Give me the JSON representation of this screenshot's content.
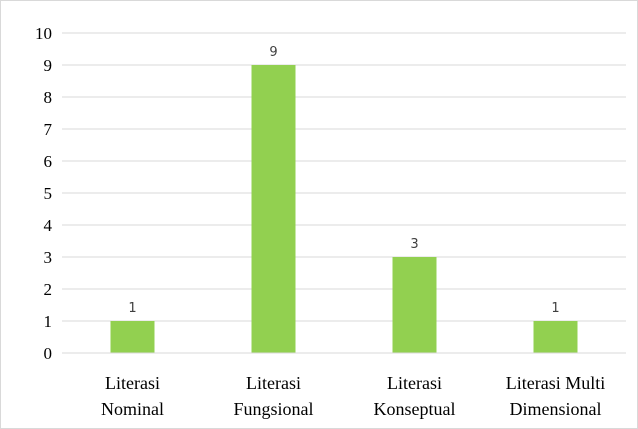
{
  "chart_data": {
    "type": "bar",
    "categories": [
      [
        "Literasi",
        "Nominal"
      ],
      [
        "Literasi",
        "Fungsional"
      ],
      [
        "Literasi",
        "Konseptual"
      ],
      [
        "Literasi Multi",
        "Dimensional"
      ]
    ],
    "values": [
      1,
      9,
      3,
      1
    ],
    "data_labels": [
      "1",
      "9",
      "3",
      "1"
    ],
    "ylim": [
      0,
      10
    ],
    "yticks": [
      "0",
      "1",
      "2",
      "3",
      "4",
      "5",
      "6",
      "7",
      "8",
      "9",
      "10"
    ],
    "grid": true,
    "legend": "none",
    "colors": {
      "bar": "#92d050",
      "grid": "#d9d9d9",
      "axis": "#d9d9d9",
      "text": "#000000",
      "label": "#404040"
    }
  }
}
